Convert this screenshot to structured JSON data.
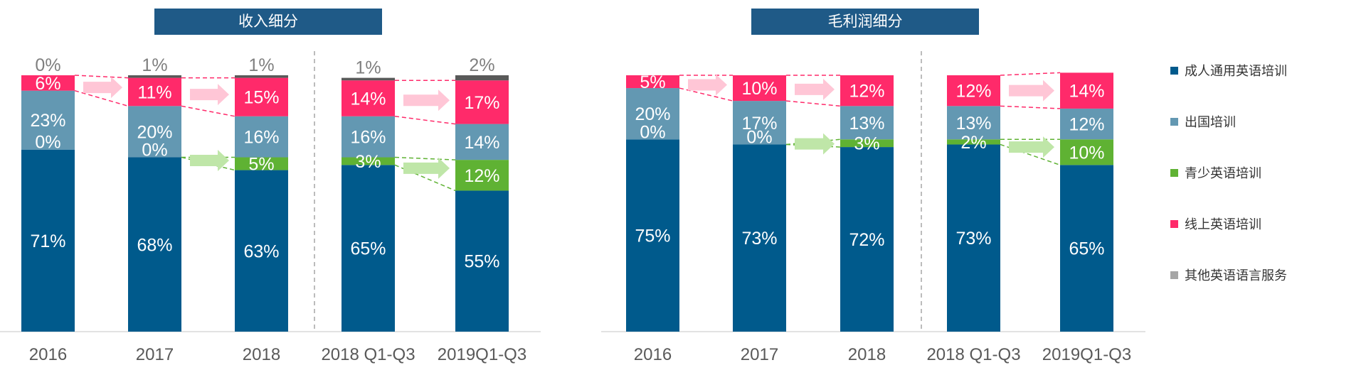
{
  "colors": {
    "adult": "#005a8c",
    "overseas": "#6398b2",
    "youth": "#5fb233",
    "online": "#ff2a6a",
    "other": "#595959",
    "title_bg": "#1f5a87",
    "pink_arrow": "#ffc6d6",
    "green_arrow": "#bfe6a8"
  },
  "legend": [
    {
      "label": "成人通用英语培训",
      "color": "#005a8c"
    },
    {
      "label": "出国培训",
      "color": "#6398b2"
    },
    {
      "label": "青少英语培训",
      "color": "#5fb233"
    },
    {
      "label": "线上英语培训",
      "color": "#ff2a6a"
    },
    {
      "label": "其他英语语言服务",
      "color": "#a6a6a6"
    }
  ],
  "chart_data": [
    {
      "type": "bar",
      "stacked": true,
      "normalized": true,
      "title": "收入细分",
      "categories": [
        "2016",
        "2017",
        "2018",
        "2018 Q1-Q3",
        "2019Q1-Q3"
      ],
      "series": [
        {
          "name": "成人通用英语培训",
          "values": [
            71,
            68,
            63,
            65,
            55
          ],
          "labels": [
            "71%",
            "68%",
            "63%",
            "65%",
            "55%"
          ]
        },
        {
          "name": "青少英语培训",
          "values": [
            0,
            0,
            5,
            3,
            12
          ],
          "labels": [
            "0%",
            "0%",
            "5%",
            "3%",
            "12%"
          ]
        },
        {
          "name": "出国培训",
          "values": [
            23,
            20,
            16,
            16,
            14
          ],
          "labels": [
            "23%",
            "20%",
            "16%",
            "16%",
            "14%"
          ]
        },
        {
          "name": "线上英语培训",
          "values": [
            6,
            11,
            15,
            14,
            17
          ],
          "labels": [
            "6%",
            "11%",
            "15%",
            "14%",
            "17%"
          ]
        },
        {
          "name": "其他英语语言服务",
          "values": [
            0,
            1,
            1,
            1,
            2
          ],
          "labels": [
            "0%",
            "1%",
            "1%",
            "1%",
            "2%"
          ]
        }
      ]
    },
    {
      "type": "bar",
      "stacked": true,
      "normalized": true,
      "title": "毛利润细分",
      "categories": [
        "2016",
        "2017",
        "2018",
        "2018 Q1-Q3",
        "2019Q1-Q3"
      ],
      "series": [
        {
          "name": "成人通用英语培训",
          "values": [
            75,
            73,
            72,
            73,
            65
          ],
          "labels": [
            "75%",
            "73%",
            "72%",
            "73%",
            "65%"
          ]
        },
        {
          "name": "青少英语培训",
          "values": [
            0,
            0,
            3,
            2,
            10
          ],
          "labels": [
            "0%",
            "0%",
            "3%",
            "2%",
            "10%"
          ]
        },
        {
          "name": "出国培训",
          "values": [
            20,
            17,
            13,
            13,
            12
          ],
          "labels": [
            "20%",
            "17%",
            "13%",
            "13%",
            "12%"
          ]
        },
        {
          "name": "线上英语培训",
          "values": [
            5,
            10,
            12,
            12,
            14
          ],
          "labels": [
            "5%",
            "10%",
            "12%",
            "12%",
            "14%"
          ]
        },
        {
          "name": "其他英语语言服务",
          "values": [
            0,
            0,
            0,
            0,
            0
          ],
          "labels": [
            "",
            "",
            "",
            "",
            ""
          ]
        }
      ]
    }
  ]
}
